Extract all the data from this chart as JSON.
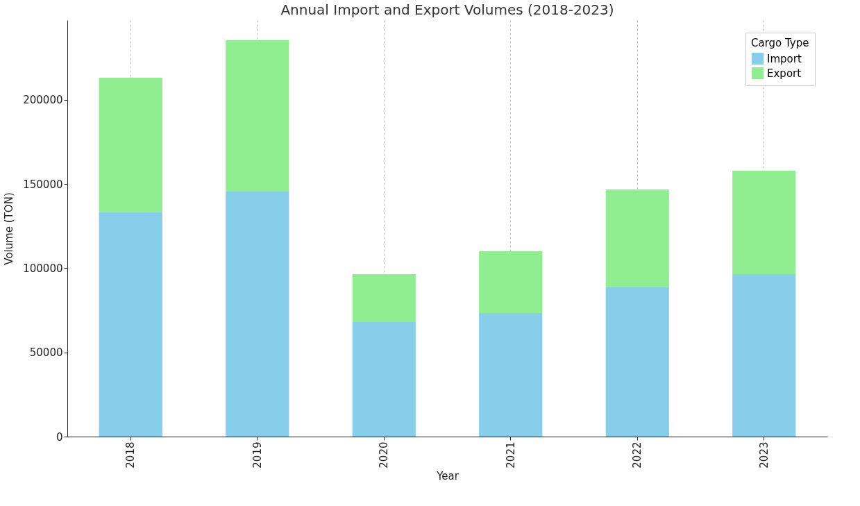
{
  "chart_data": {
    "type": "bar",
    "title": "Annual Import and Export Volumes (2018-2023)",
    "xlabel": "Year",
    "ylabel": "Volume (TON)",
    "legend_title": "Cargo Type",
    "categories": [
      "2018",
      "2019",
      "2020",
      "2021",
      "2022",
      "2023"
    ],
    "series": [
      {
        "name": "Import",
        "color": "#87ceeb",
        "values": [
          133200,
          145600,
          68000,
          73400,
          88700,
          96500
        ]
      },
      {
        "name": "Export",
        "color": "#90ee90",
        "values": [
          80000,
          89900,
          28500,
          36700,
          58100,
          61400
        ]
      }
    ],
    "stacked": true,
    "ylim": [
      0,
      247400
    ],
    "yticks": [
      0,
      50000,
      100000,
      150000,
      200000
    ],
    "grid": "x",
    "legend": "top right"
  }
}
